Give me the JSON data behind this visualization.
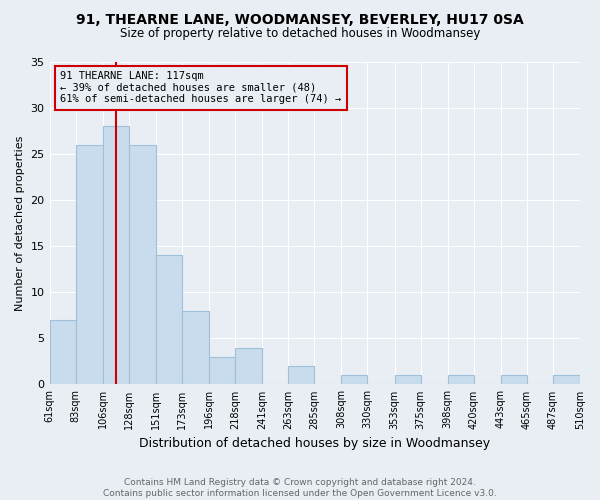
{
  "title": "91, THEARNE LANE, WOODMANSEY, BEVERLEY, HU17 0SA",
  "subtitle": "Size of property relative to detached houses in Woodmansey",
  "xlabel": "Distribution of detached houses by size in Woodmansey",
  "ylabel": "Number of detached properties",
  "bins": [
    61,
    83,
    106,
    128,
    151,
    173,
    196,
    218,
    241,
    263,
    285,
    308,
    330,
    353,
    375,
    398,
    420,
    443,
    465,
    487,
    510
  ],
  "counts": [
    7,
    26,
    28,
    26,
    14,
    8,
    3,
    4,
    0,
    2,
    0,
    1,
    0,
    1,
    0,
    1,
    0,
    1,
    0,
    1
  ],
  "bar_color": "#c8dced",
  "bar_edge_color": "#a0bfd8",
  "property_size": 117,
  "property_line_color": "#cc0000",
  "annotation_line1": "91 THEARNE LANE: 117sqm",
  "annotation_line2": "← 39% of detached houses are smaller (48)",
  "annotation_line3": "61% of semi-detached houses are larger (74) →",
  "annotation_box_edge_color": "#cc0000",
  "ylim": [
    0,
    35
  ],
  "yticks": [
    0,
    5,
    10,
    15,
    20,
    25,
    30,
    35
  ],
  "tick_labels": [
    "61sqm",
    "83sqm",
    "106sqm",
    "128sqm",
    "151sqm",
    "173sqm",
    "196sqm",
    "218sqm",
    "241sqm",
    "263sqm",
    "285sqm",
    "308sqm",
    "330sqm",
    "353sqm",
    "375sqm",
    "398sqm",
    "420sqm",
    "443sqm",
    "465sqm",
    "487sqm",
    "510sqm"
  ],
  "footer_text": "Contains HM Land Registry data © Crown copyright and database right 2024.\nContains public sector information licensed under the Open Government Licence v3.0.",
  "background_color": "#e8eef4",
  "grid_color": "#ffffff",
  "title_fontsize": 10,
  "subtitle_fontsize": 8.5,
  "ylabel_fontsize": 8,
  "xlabel_fontsize": 9,
  "tick_fontsize": 7,
  "footer_fontsize": 6.5,
  "footer_color": "#666666"
}
